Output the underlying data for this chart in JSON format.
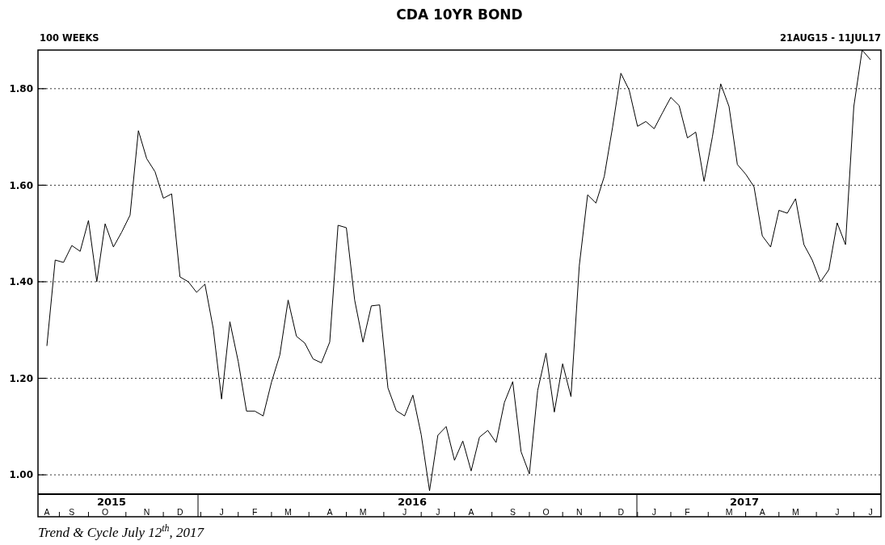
{
  "chart_data": {
    "type": "line",
    "title": "CDA 10YR BOND",
    "annotations": [
      "100 WEEKS",
      "21AUG15 - 11JUL17",
      "Trend & Cycle July 12$^{th}$, 2017",
      "2015",
      "2016",
      "2017"
    ],
    "categories": [
      "A",
      null,
      null,
      "S",
      null,
      null,
      null,
      "O",
      null,
      null,
      null,
      null,
      "N",
      null,
      null,
      null,
      "D",
      null,
      null,
      null,
      null,
      "J",
      null,
      null,
      null,
      "F",
      null,
      null,
      null,
      "M",
      null,
      null,
      null,
      null,
      "A",
      null,
      null,
      null,
      "M",
      null,
      null,
      null,
      null,
      "J",
      null,
      null,
      null,
      "J",
      null,
      null,
      null,
      "A",
      null,
      null,
      null,
      null,
      "S",
      null,
      null,
      null,
      "O",
      null,
      null,
      null,
      "N",
      null,
      null,
      null,
      null,
      "D",
      null,
      null,
      null,
      "J",
      null,
      null,
      null,
      "F",
      null,
      null,
      null,
      null,
      "M",
      null,
      null,
      null,
      "A",
      null,
      null,
      null,
      "M",
      null,
      null,
      null,
      null,
      "J",
      null,
      null,
      null,
      "J"
    ],
    "series": [
      {
        "color": "#000000",
        "values": [
          1.267,
          1.445,
          1.44,
          1.475,
          1.463,
          1.527,
          1.4,
          1.52,
          1.472,
          1.503,
          1.538,
          1.713,
          1.655,
          1.628,
          1.573,
          1.582,
          1.41,
          1.4,
          1.378,
          1.395,
          1.303,
          1.157,
          1.317,
          1.235,
          1.132,
          1.132,
          1.122,
          1.192,
          1.248,
          1.362,
          1.287,
          1.273,
          1.24,
          1.232,
          1.275,
          1.517,
          1.512,
          1.362,
          1.275,
          1.35,
          1.352,
          1.18,
          1.133,
          1.122,
          1.165,
          1.083,
          0.967,
          1.082,
          1.1,
          1.03,
          1.07,
          1.008,
          1.078,
          1.092,
          1.067,
          1.15,
          1.193,
          1.048,
          1.002,
          1.175,
          1.252,
          1.13,
          1.23,
          1.162,
          1.433,
          1.58,
          1.563,
          1.618,
          1.72,
          1.832,
          1.797,
          1.722,
          1.732,
          1.717,
          1.75,
          1.782,
          1.765,
          1.698,
          1.71,
          1.608,
          1.7,
          1.81,
          1.763,
          1.643,
          1.623,
          1.597,
          1.495,
          1.472,
          1.548,
          1.542,
          1.572,
          1.477,
          1.445,
          1.4,
          1.425,
          1.522,
          1.477,
          1.763,
          1.88,
          1.86
        ]
      }
    ],
    "ylim": [
      0.96,
      1.88
    ],
    "yticks": [
      {
        "value": 1,
        "label": "1.00"
      },
      {
        "value": 1.2,
        "label": "1.20"
      },
      {
        "value": 1.4,
        "label": "1.40"
      },
      {
        "value": 1.6,
        "label": "1.60"
      },
      {
        "value": 1.8,
        "label": "1.80"
      }
    ],
    "grid": "y",
    "line_style": "solid",
    "marker": "none"
  }
}
